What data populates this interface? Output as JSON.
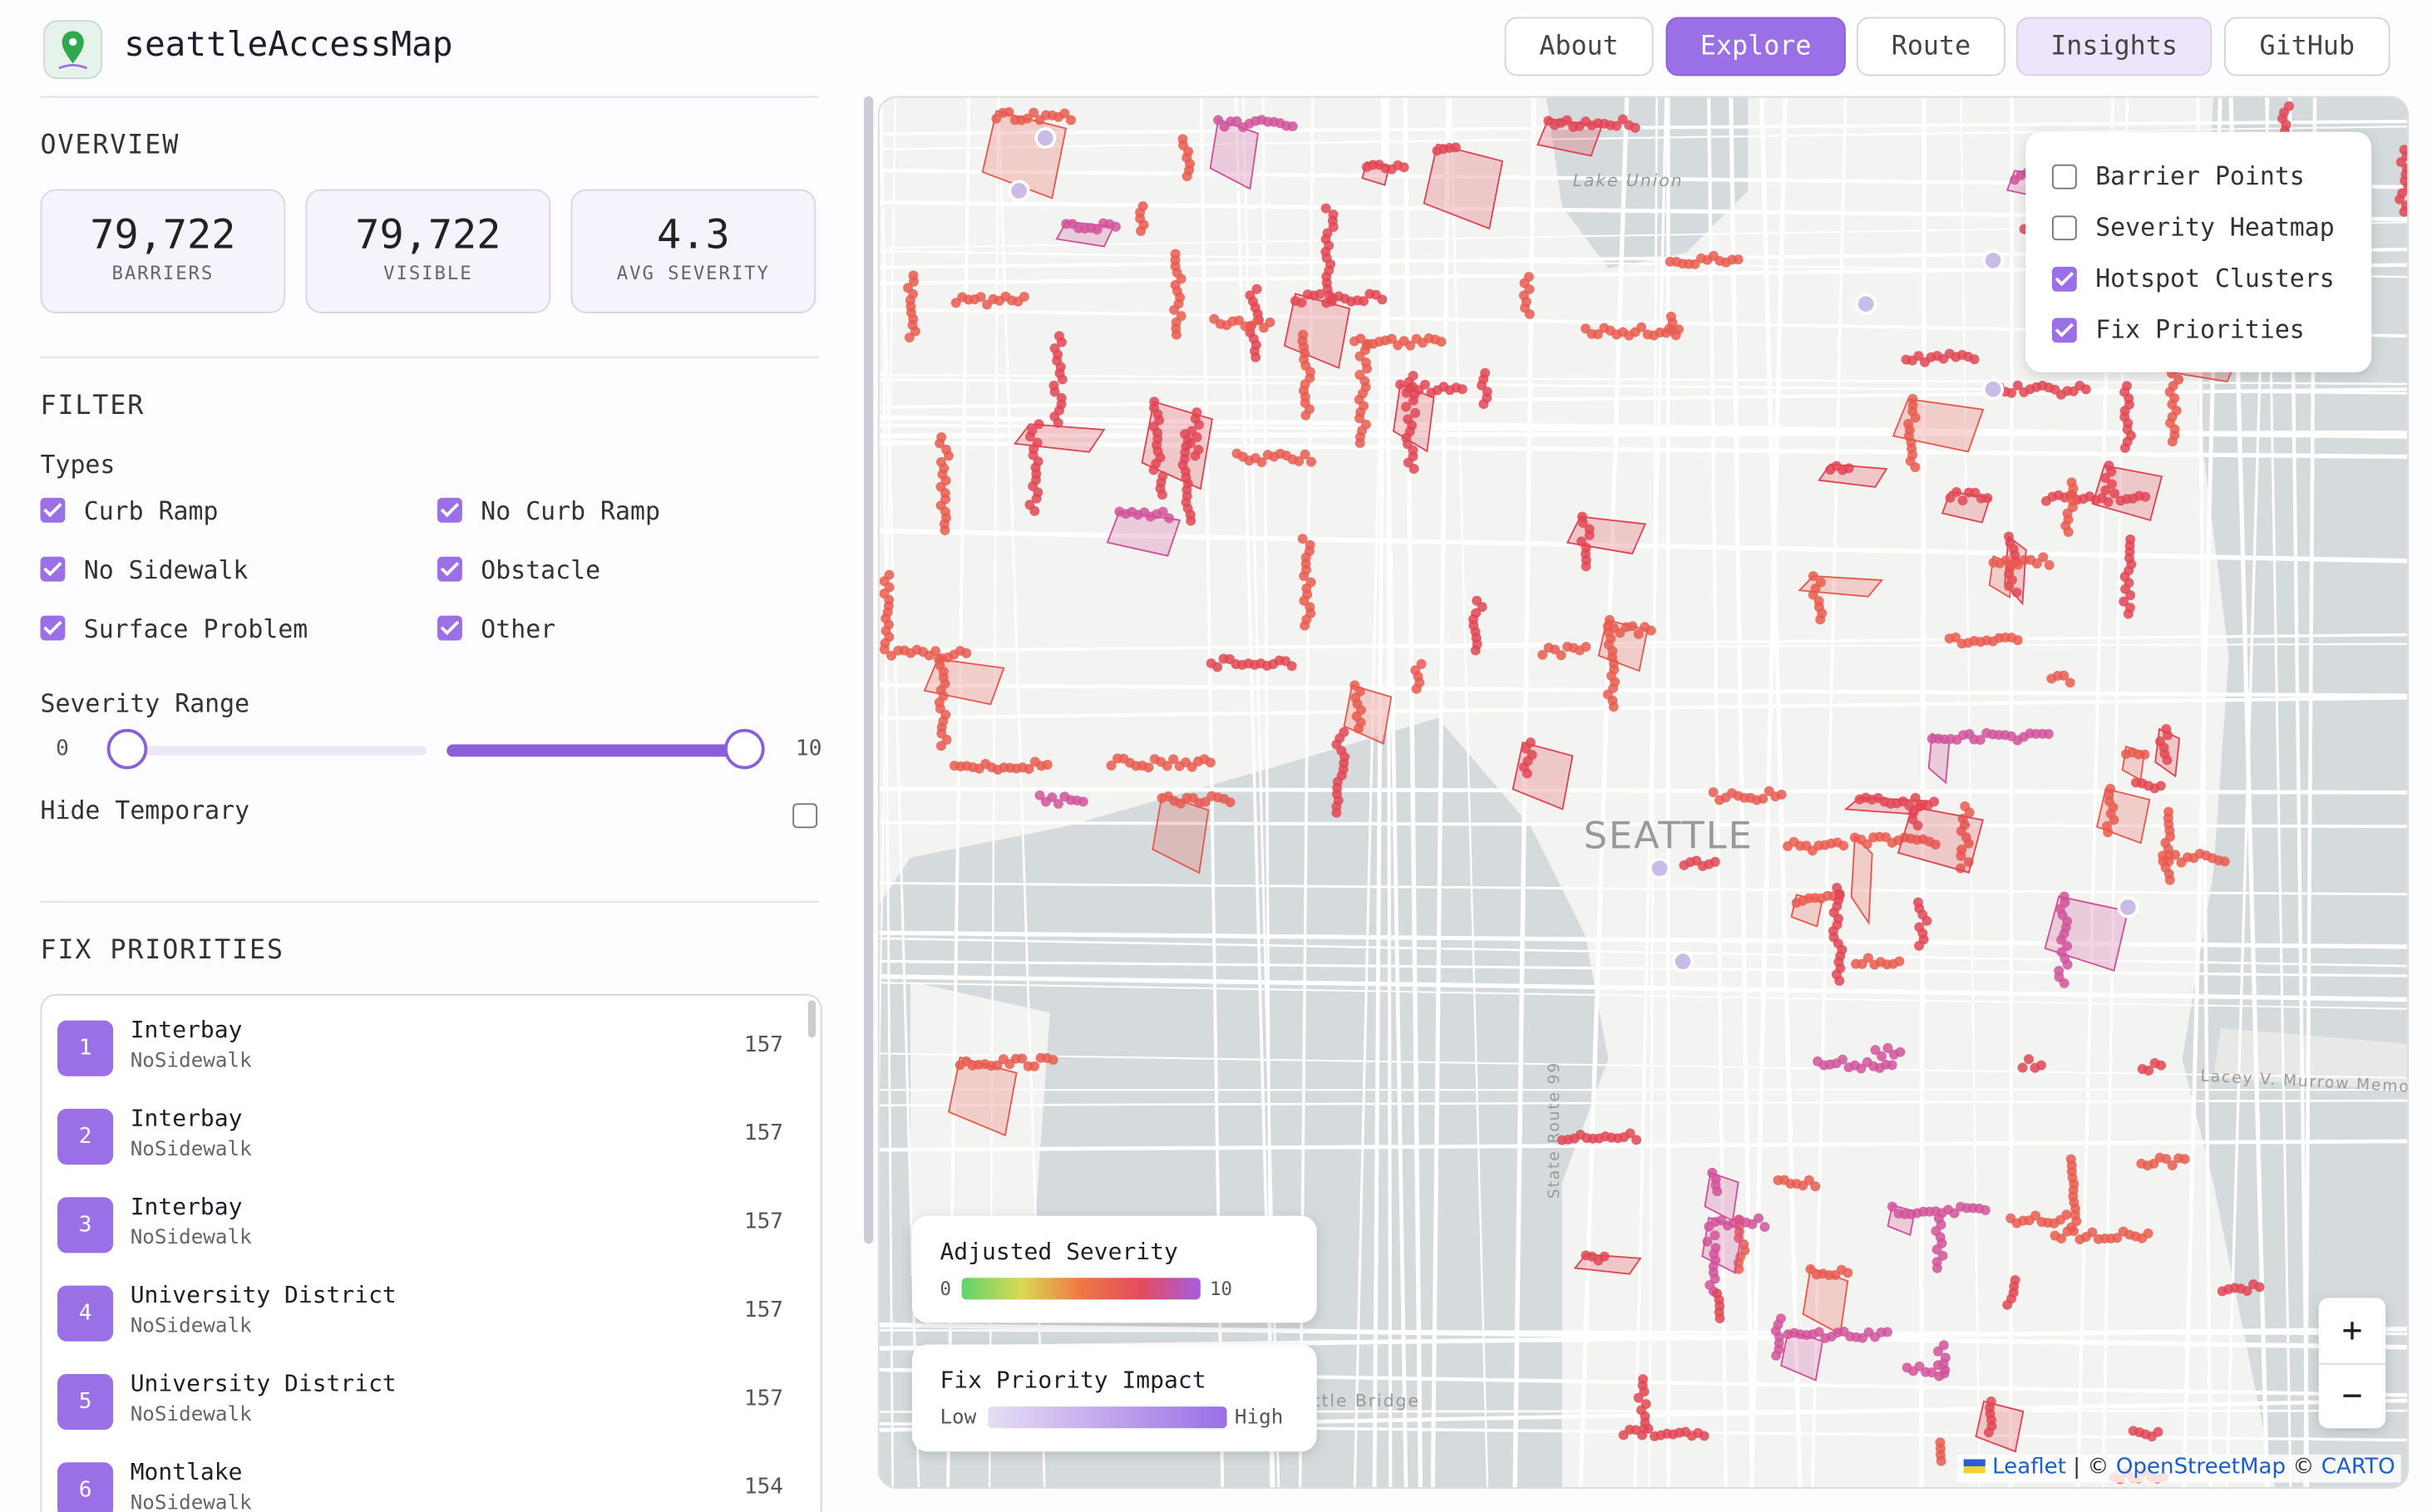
{
  "header": {
    "title": "seattleAccessMap",
    "nav": [
      "About",
      "Explore",
      "Route",
      "Insights",
      "GitHub"
    ],
    "active": "Explore",
    "highlighted": "Insights"
  },
  "overview": {
    "heading": "OVERVIEW",
    "stats": [
      {
        "value": "79,722",
        "label": "BARRIERS"
      },
      {
        "value": "79,722",
        "label": "VISIBLE"
      },
      {
        "value": 4.3,
        "label": "AVG SEVERITY"
      }
    ]
  },
  "filter": {
    "heading": "FILTER",
    "types_label": "Types",
    "types": [
      {
        "label": "Curb Ramp",
        "checked": true
      },
      {
        "label": "No Curb Ramp",
        "checked": true
      },
      {
        "label": "No Sidewalk",
        "checked": true
      },
      {
        "label": "Obstacle",
        "checked": true
      },
      {
        "label": "Surface Problem",
        "checked": true
      },
      {
        "label": "Other",
        "checked": true
      }
    ],
    "severity_label": "Severity Range",
    "severity_min": 0,
    "severity_max": 10,
    "hide_temporary": {
      "label": "Hide Temporary",
      "checked": false
    }
  },
  "fix_priorities": {
    "heading": "FIX PRIORITIES",
    "items": [
      {
        "rank": 1,
        "name": "Interbay",
        "type": "NoSidewalk",
        "score": 157
      },
      {
        "rank": 2,
        "name": "Interbay",
        "type": "NoSidewalk",
        "score": 157
      },
      {
        "rank": 3,
        "name": "Interbay",
        "type": "NoSidewalk",
        "score": 157
      },
      {
        "rank": 4,
        "name": "University District",
        "type": "NoSidewalk",
        "score": 157
      },
      {
        "rank": 5,
        "name": "University District",
        "type": "NoSidewalk",
        "score": 157
      },
      {
        "rank": 6,
        "name": "Montlake",
        "type": "NoSidewalk",
        "score": 154
      }
    ]
  },
  "map": {
    "layers": [
      {
        "label": "Barrier Points",
        "checked": false
      },
      {
        "label": "Severity Heatmap",
        "checked": false
      },
      {
        "label": "Hotspot Clusters",
        "checked": true
      },
      {
        "label": "Fix Priorities",
        "checked": true
      }
    ],
    "place_labels": [
      "Lake Union",
      "SEATTLE",
      "State Route 99",
      "Lacey V. Murrow Memo",
      "attle Bridge"
    ],
    "legend_severity": {
      "title": "Adjusted Severity",
      "min": "0",
      "max": "10"
    },
    "legend_priority": {
      "title": "Fix Priority Impact",
      "low": "Low",
      "high": "High"
    },
    "zoom_in": "+",
    "zoom_out": "−",
    "attribution": {
      "leaflet": "Leaflet",
      "sep1": "| ©",
      "osm": "OpenStreetMap",
      "sep2": "©",
      "carto": "CARTO"
    }
  }
}
